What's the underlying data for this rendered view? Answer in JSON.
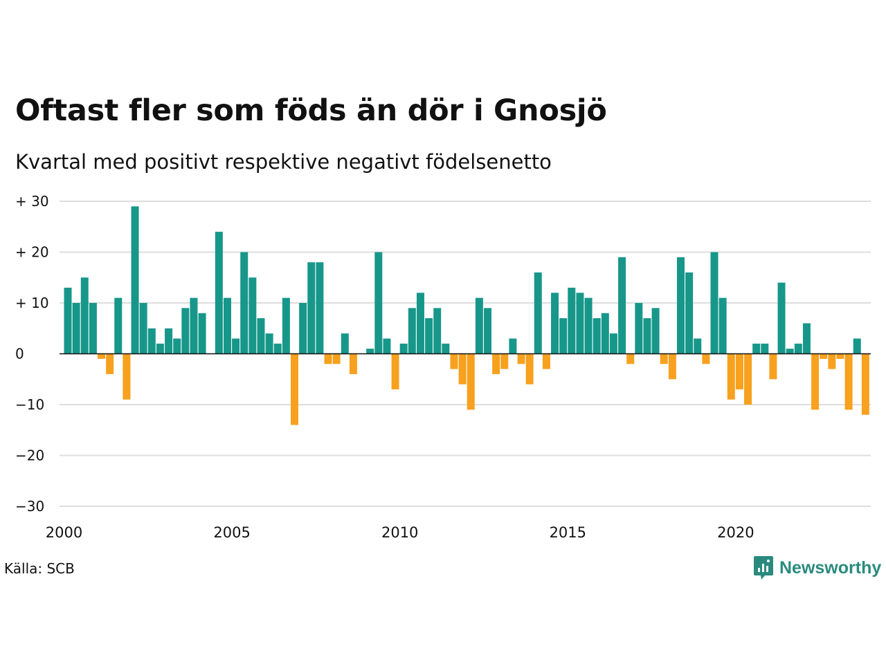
{
  "title": "Oftast fler som föds än dör i Gnosjö",
  "subtitle": "Kvartal med positivt respektive negativt födelsenetto",
  "source": "Källa: SCB",
  "brand": {
    "name": "Newsworthy",
    "icon": "newsworthy-logo-icon"
  },
  "colors": {
    "positive": "#17978a",
    "negative": "#f7a11e",
    "grid": "#dddddd",
    "zero": "#111111"
  },
  "chart_data": {
    "type": "bar",
    "xlabel": "",
    "ylabel": "",
    "ylim": [
      -30,
      30
    ],
    "yticks": [
      {
        "value": 30,
        "label": "+ 30"
      },
      {
        "value": 20,
        "label": "+ 20"
      },
      {
        "value": 10,
        "label": "+ 10"
      },
      {
        "value": 0,
        "label": "0"
      },
      {
        "value": -10,
        "label": "−10"
      },
      {
        "value": -20,
        "label": "−20"
      },
      {
        "value": -30,
        "label": "−30"
      }
    ],
    "xticks": [
      {
        "year": 2000,
        "label": "2000"
      },
      {
        "year": 2005,
        "label": "2005"
      },
      {
        "year": 2010,
        "label": "2010"
      },
      {
        "year": 2015,
        "label": "2015"
      },
      {
        "year": 2020,
        "label": "2020"
      }
    ],
    "start": "2000 Q1",
    "categories": [
      "2000 Q1",
      "2000 Q2",
      "2000 Q3",
      "2000 Q4",
      "2001 Q1",
      "2001 Q2",
      "2001 Q3",
      "2001 Q4",
      "2002 Q1",
      "2002 Q2",
      "2002 Q3",
      "2002 Q4",
      "2003 Q1",
      "2003 Q2",
      "2003 Q3",
      "2003 Q4",
      "2004 Q1",
      "2004 Q2",
      "2004 Q3",
      "2004 Q4",
      "2005 Q1",
      "2005 Q2",
      "2005 Q3",
      "2005 Q4",
      "2006 Q1",
      "2006 Q2",
      "2006 Q3",
      "2006 Q4",
      "2007 Q1",
      "2007 Q2",
      "2007 Q3",
      "2007 Q4",
      "2008 Q1",
      "2008 Q2",
      "2008 Q3",
      "2008 Q4",
      "2009 Q1",
      "2009 Q2",
      "2009 Q3",
      "2009 Q4",
      "2010 Q1",
      "2010 Q2",
      "2010 Q3",
      "2010 Q4",
      "2011 Q1",
      "2011 Q2",
      "2011 Q3",
      "2011 Q4",
      "2012 Q1",
      "2012 Q2",
      "2012 Q3",
      "2012 Q4",
      "2013 Q1",
      "2013 Q2",
      "2013 Q3",
      "2013 Q4",
      "2014 Q1",
      "2014 Q2",
      "2014 Q3",
      "2014 Q4",
      "2015 Q1",
      "2015 Q2",
      "2015 Q3",
      "2015 Q4",
      "2016 Q1",
      "2016 Q2",
      "2016 Q3",
      "2016 Q4",
      "2017 Q1",
      "2017 Q2",
      "2017 Q3",
      "2017 Q4",
      "2018 Q1",
      "2018 Q2",
      "2018 Q3",
      "2018 Q4",
      "2019 Q1",
      "2019 Q2",
      "2019 Q3",
      "2019 Q4",
      "2020 Q1",
      "2020 Q2",
      "2020 Q3",
      "2020 Q4",
      "2021 Q1",
      "2021 Q2",
      "2021 Q3",
      "2021 Q4",
      "2022 Q1",
      "2022 Q2",
      "2022 Q3",
      "2022 Q4",
      "2023 Q1",
      "2023 Q2",
      "2023 Q3",
      "2023 Q4",
      "2024 Q1"
    ],
    "values": [
      13,
      10,
      15,
      10,
      -1,
      -4,
      11,
      -9,
      29,
      10,
      5,
      2,
      5,
      3,
      9,
      11,
      8,
      0,
      24,
      11,
      3,
      20,
      15,
      7,
      4,
      2,
      11,
      -14,
      10,
      18,
      18,
      -2,
      -2,
      4,
      -4,
      0,
      1,
      20,
      3,
      -7,
      2,
      9,
      12,
      7,
      9,
      2,
      -3,
      -6,
      -11,
      11,
      9,
      -4,
      -3,
      3,
      -2,
      -6,
      16,
      -3,
      12,
      7,
      13,
      12,
      11,
      7,
      8,
      4,
      19,
      -2,
      10,
      7,
      9,
      -2,
      -5,
      19,
      16,
      3,
      -2,
      20,
      11,
      -9,
      -7,
      -10,
      2,
      2,
      -5,
      14,
      1,
      2,
      6,
      -11,
      -1,
      -3,
      -1,
      -11,
      3,
      -12,
      0
    ]
  }
}
